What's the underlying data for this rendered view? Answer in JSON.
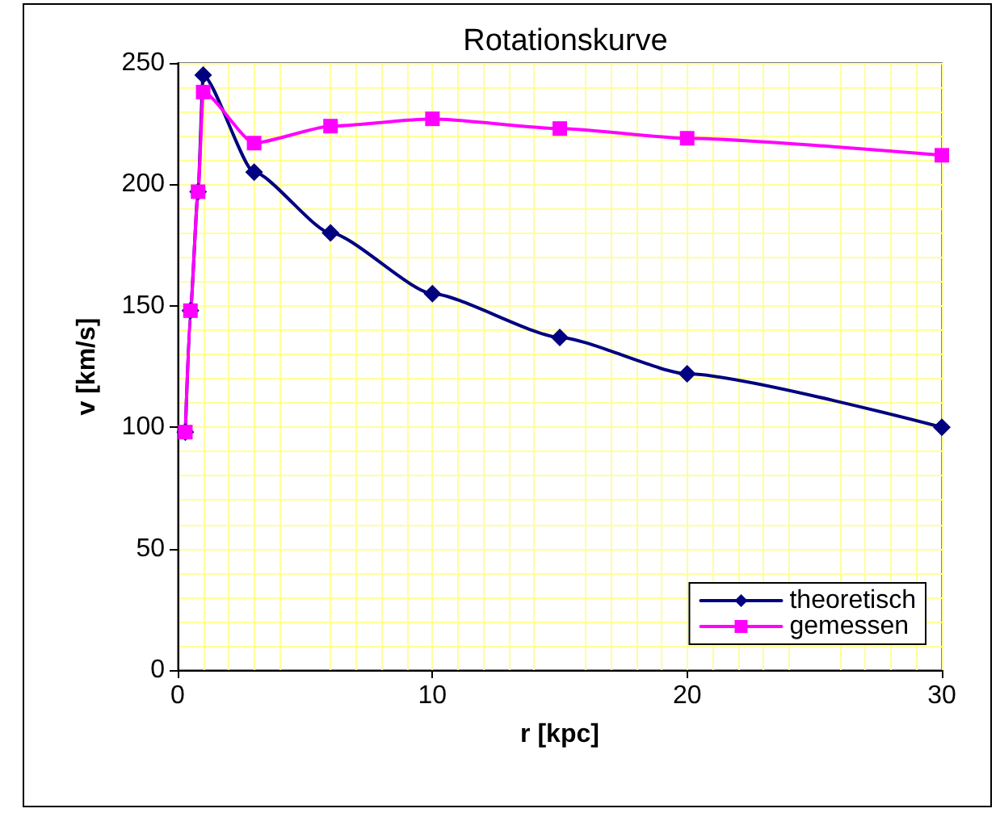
{
  "chart_data": {
    "type": "line",
    "title": "Rotationskurve",
    "xlabel": "r [kpc]",
    "ylabel": "v [km/s]",
    "xlim": [
      0,
      30
    ],
    "xticks": [
      0,
      10,
      20,
      30
    ],
    "ylim": [
      0,
      250
    ],
    "yticks": [
      0,
      50,
      100,
      150,
      200,
      250
    ],
    "grid": true,
    "legend": "bottom right",
    "series": [
      {
        "name": "theoretisch",
        "color": "#000080",
        "marker": "diamond",
        "x": [
          0.3,
          0.5,
          0.8,
          1,
          3,
          6,
          10,
          15,
          20,
          30
        ],
        "values": [
          98,
          148,
          197,
          245,
          205,
          180,
          155,
          137,
          122,
          100
        ]
      },
      {
        "name": "gemessen",
        "color": "#ff00ff",
        "marker": "square",
        "x": [
          0.3,
          0.5,
          0.8,
          1,
          3,
          6,
          10,
          15,
          20,
          30
        ],
        "values": [
          98,
          148,
          197,
          238,
          217,
          224,
          227,
          223,
          219,
          212
        ]
      }
    ]
  }
}
